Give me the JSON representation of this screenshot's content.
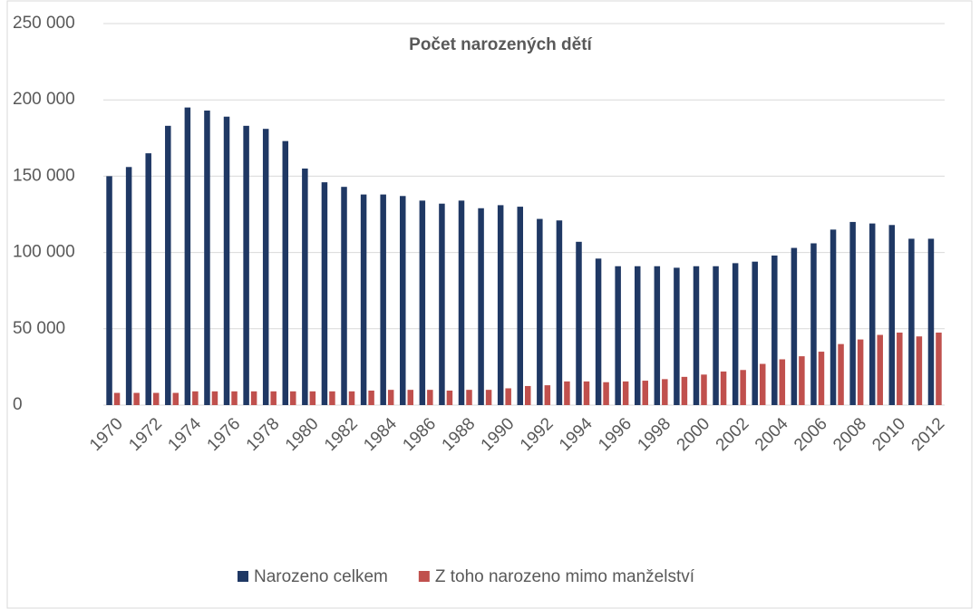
{
  "chart_data": {
    "type": "bar",
    "title": "Počet narozených dětí",
    "categories": [
      "1970",
      null,
      "1972",
      null,
      "1974",
      null,
      "1976",
      null,
      "1978",
      null,
      "1980",
      null,
      "1982",
      null,
      "1984",
      null,
      "1986",
      null,
      "1988",
      null,
      "1990",
      null,
      "1992",
      null,
      "1994",
      null,
      "1996",
      null,
      "1998",
      null,
      "2000",
      null,
      "2002",
      null,
      "2004",
      null,
      "2006",
      null,
      "2008",
      null,
      "2010",
      null,
      "2012"
    ],
    "series": [
      {
        "name": "Narozeno celkem",
        "color": "#1f3864",
        "values": [
          150000,
          156000,
          165000,
          183000,
          195000,
          193000,
          189000,
          183000,
          181000,
          173000,
          155000,
          146000,
          143000,
          138000,
          138000,
          137000,
          134000,
          132000,
          134000,
          129000,
          131000,
          130000,
          122000,
          121000,
          107000,
          96000,
          91000,
          91000,
          91000,
          90000,
          91000,
          91000,
          93000,
          94000,
          98000,
          103000,
          106000,
          115000,
          120000,
          119000,
          118000,
          109000,
          109000
        ]
      },
      {
        "name": "Z toho narozeno mimo manželství",
        "color": "#c0504d",
        "values": [
          8000,
          8000,
          8000,
          8000,
          9000,
          9000,
          9000,
          9000,
          9000,
          9000,
          9000,
          9000,
          9000,
          9500,
          10000,
          10000,
          10000,
          9500,
          10000,
          10000,
          11000,
          12500,
          13000,
          15500,
          15500,
          15000,
          15500,
          16000,
          17000,
          18500,
          20000,
          22000,
          23000,
          27000,
          30000,
          32000,
          35000,
          40000,
          43000,
          46000,
          47500,
          45000,
          47500
        ]
      }
    ],
    "ylim": [
      0,
      250000
    ],
    "yticks": [
      0,
      {
        "value": 50000,
        "label": "50 000"
      },
      {
        "value": 100000,
        "label": "100 000"
      },
      {
        "value": 150000,
        "label": "150 000"
      },
      {
        "value": 200000,
        "label": "200 000"
      },
      {
        "value": 250000,
        "label": "250 000"
      }
    ],
    "grid": true,
    "legend": "bottom"
  }
}
